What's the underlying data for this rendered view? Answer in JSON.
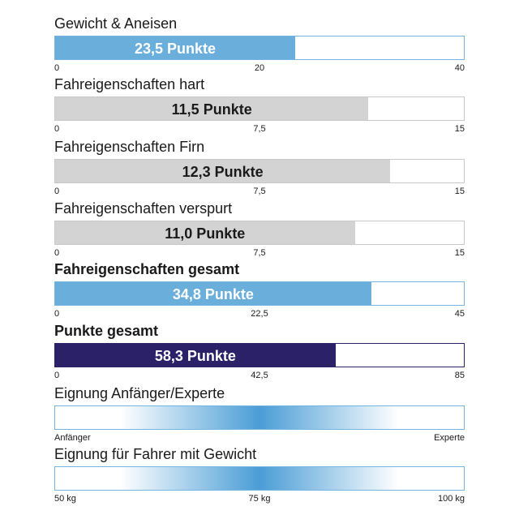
{
  "colors": {
    "blue": "#6aaedb",
    "grey": "#d3d3d3",
    "navy": "#2b2168",
    "blue_border": "#74b4e0",
    "grey_border": "#c8c8c8",
    "navy_border": "#2b2168"
  },
  "chart_data": [
    {
      "type": "bar",
      "title": "Gewicht & Aneisen",
      "value": 23.5,
      "value_label": "23,5 Punkte",
      "max": 40,
      "ticks": [
        "0",
        "20",
        "40"
      ],
      "color": "#6aaedb",
      "border": "#74b4e0",
      "text_color": "#ffffff",
      "bold_title": false
    },
    {
      "type": "bar",
      "title": "Fahreigenschaften hart",
      "value": 11.5,
      "value_label": "11,5 Punkte",
      "max": 15,
      "ticks": [
        "0",
        "7,5",
        "15"
      ],
      "color": "#d3d3d3",
      "border": "#c8c8c8",
      "text_color": "#1a1a1a",
      "bold_title": false
    },
    {
      "type": "bar",
      "title": "Fahreigenschaften Firn",
      "value": 12.3,
      "value_label": "12,3 Punkte",
      "max": 15,
      "ticks": [
        "0",
        "7,5",
        "15"
      ],
      "color": "#d3d3d3",
      "border": "#c8c8c8",
      "text_color": "#1a1a1a",
      "bold_title": false
    },
    {
      "type": "bar",
      "title": "Fahreigenschaften verspurt",
      "value": 11.0,
      "value_label": "11,0 Punkte",
      "max": 15,
      "ticks": [
        "0",
        "7,5",
        "15"
      ],
      "color": "#d3d3d3",
      "border": "#c8c8c8",
      "text_color": "#1a1a1a",
      "bold_title": false
    },
    {
      "type": "bar",
      "title": "Fahreigenschaften gesamt",
      "value": 34.8,
      "value_label": "34,8 Punkte",
      "max": 45,
      "ticks": [
        "0",
        "22,5",
        "45"
      ],
      "color": "#6aaedb",
      "border": "#74b4e0",
      "text_color": "#ffffff",
      "bold_title": true
    },
    {
      "type": "bar",
      "title": "Punkte gesamt",
      "value": 58.3,
      "value_label": "58,3 Punkte",
      "max": 85,
      "ticks": [
        "0",
        "42,5",
        "85"
      ],
      "color": "#2b2168",
      "border": "#2b2168",
      "text_color": "#ffffff",
      "bold_title": true
    },
    {
      "type": "gradient",
      "title": "Eignung Anfänger/Experte",
      "position": 0.5,
      "ticks": [
        "Anfänger",
        "",
        "Experte"
      ],
      "color": "#4a9dd6",
      "border": "#74b4e0",
      "bold_title": false
    },
    {
      "type": "gradient",
      "title": "Eignung für Fahrer mit Gewicht",
      "position": 0.5,
      "ticks": [
        "50 kg",
        "75 kg",
        "100 kg"
      ],
      "color": "#4a9dd6",
      "border": "#74b4e0",
      "bold_title": false
    }
  ]
}
